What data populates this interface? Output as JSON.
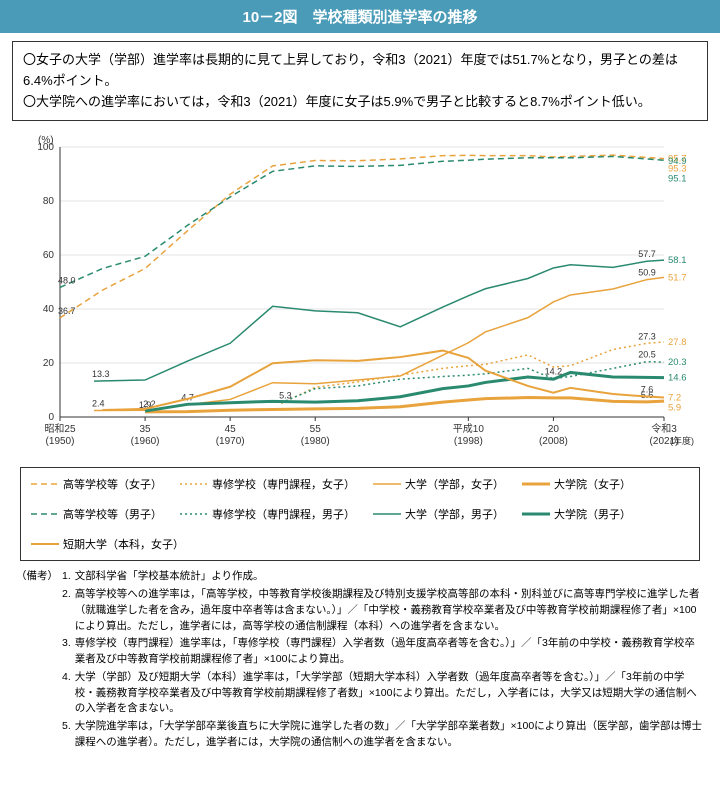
{
  "title": "10－2図　学校種類別進学率の推移",
  "summary": [
    "〇女子の大学（学部）進学率は長期的に見て上昇しており，令和3（2021）年度では51.7%となり，男子との差は6.4%ポイント。",
    "〇大学院への進学率においては，令和3（2021）年度に女子は5.9%で男子と比較すると8.7%ポイント低い。"
  ],
  "chart": {
    "type": "line",
    "ylabel": "(%)",
    "xlabel": "(年度)",
    "ylim": [
      0,
      100
    ],
    "ytick_step": 20,
    "yticks": [
      0,
      20,
      40,
      60,
      80,
      100
    ],
    "xticks": [
      {
        "x": 1950,
        "top": "昭和25",
        "bot": "(1950)"
      },
      {
        "x": 1960,
        "top": "35",
        "bot": "(1960)"
      },
      {
        "x": 1970,
        "top": "45",
        "bot": "(1970)"
      },
      {
        "x": 1980,
        "top": "55",
        "bot": "(1980)"
      },
      {
        "x": 1998,
        "top": "平成10",
        "bot": "(1998)"
      },
      {
        "x": 2008,
        "top": "20",
        "bot": "(2008)"
      },
      {
        "x": 2021,
        "top": "令和3",
        "bot": "(2021)"
      }
    ],
    "xlim": [
      1950,
      2021
    ],
    "background_color": "#ffffff",
    "grid_color": "#c8c8c8",
    "axis_color": "#333333",
    "label_fontsize": 10,
    "series": [
      {
        "id": "hs_f",
        "name": "高等学校等（女子）",
        "color": "#e8a33d",
        "dash": "6,4",
        "width": 1.5,
        "data": [
          [
            1950,
            36.7
          ],
          [
            1955,
            47
          ],
          [
            1960,
            55
          ],
          [
            1965,
            69
          ],
          [
            1970,
            82.5
          ],
          [
            1975,
            93
          ],
          [
            1980,
            95
          ],
          [
            1985,
            94.9
          ],
          [
            1990,
            95.6
          ],
          [
            1995,
            96.8
          ],
          [
            1998,
            96.9
          ],
          [
            2000,
            96.8
          ],
          [
            2005,
            96.8
          ],
          [
            2008,
            96.3
          ],
          [
            2010,
            96.5
          ],
          [
            2015,
            97
          ],
          [
            2021,
            95.7
          ]
        ],
        "start_label": "36.7",
        "end_label": "95.7"
      },
      {
        "id": "hs_m",
        "name": "高等学校等（男子）",
        "color": "#2a8a6f",
        "dash": "6,4",
        "width": 1.5,
        "data": [
          [
            1950,
            48.0
          ],
          [
            1955,
            55
          ],
          [
            1960,
            59.5
          ],
          [
            1965,
            71
          ],
          [
            1970,
            81.5
          ],
          [
            1975,
            91
          ],
          [
            1980,
            93
          ],
          [
            1985,
            92.8
          ],
          [
            1990,
            93.2
          ],
          [
            1995,
            94.7
          ],
          [
            1998,
            95.1
          ],
          [
            2000,
            95.5
          ],
          [
            2005,
            96
          ],
          [
            2008,
            96
          ],
          [
            2010,
            96
          ],
          [
            2015,
            96.5
          ],
          [
            2021,
            95.1
          ]
        ],
        "start_label": "48.0",
        "end_label": "95.1"
      },
      {
        "id": "ss_f",
        "name": "専修学校（専門課程，女子）",
        "color": "#e8a33d",
        "dash": "2,3",
        "width": 1.5,
        "data": [
          [
            1976,
            5
          ],
          [
            1980,
            11
          ],
          [
            1985,
            13
          ],
          [
            1990,
            15.5
          ],
          [
            1995,
            18
          ],
          [
            1998,
            19
          ],
          [
            2000,
            19.5
          ],
          [
            2005,
            23
          ],
          [
            2008,
            18.5
          ],
          [
            2010,
            19
          ],
          [
            2015,
            25
          ],
          [
            2019,
            27.3
          ],
          [
            2021,
            27.8
          ]
        ],
        "end_label": "27.8",
        "mid_label": {
          "x": 2019,
          "y": 27.3,
          "t": "27.3"
        }
      },
      {
        "id": "ss_m",
        "name": "専修学校（専門課程，男子）",
        "color": "#2a8a6f",
        "dash": "2,3",
        "width": 1.5,
        "data": [
          [
            1976,
            5.3
          ],
          [
            1980,
            10.5
          ],
          [
            1985,
            11.5
          ],
          [
            1990,
            14
          ],
          [
            1995,
            15
          ],
          [
            1998,
            15.5
          ],
          [
            2000,
            16
          ],
          [
            2005,
            18
          ],
          [
            2008,
            14.2
          ],
          [
            2010,
            15
          ],
          [
            2015,
            18
          ],
          [
            2019,
            20.5
          ],
          [
            2021,
            20.3
          ]
        ],
        "start_label": "5.3",
        "end_label": "20.3",
        "mid_label": {
          "x": 2019,
          "y": 20.5,
          "t": "20.5"
        },
        "mid_label2": {
          "x": 2008,
          "y": 14.2,
          "t": "14.2"
        }
      },
      {
        "id": "uni_f",
        "name": "大学（学部，女子）",
        "color": "#e8a33d",
        "dash": "",
        "width": 1.5,
        "data": [
          [
            1954,
            2.4
          ],
          [
            1960,
            2.5
          ],
          [
            1965,
            4.6
          ],
          [
            1970,
            6.5
          ],
          [
            1975,
            12.7
          ],
          [
            1980,
            12.3
          ],
          [
            1985,
            13.7
          ],
          [
            1990,
            15.2
          ],
          [
            1995,
            22.9
          ],
          [
            1998,
            27.5
          ],
          [
            2000,
            31.5
          ],
          [
            2005,
            36.8
          ],
          [
            2008,
            42.6
          ],
          [
            2010,
            45.2
          ],
          [
            2015,
            47.4
          ],
          [
            2019,
            50.9
          ],
          [
            2021,
            51.7
          ]
        ],
        "start_label": "2.4",
        "end_label": "51.7",
        "mid_label": {
          "x": 2019,
          "y": 50.9,
          "t": "50.9"
        }
      },
      {
        "id": "uni_m",
        "name": "大学（学部，男子）",
        "color": "#2a8a6f",
        "dash": "",
        "width": 1.5,
        "data": [
          [
            1954,
            13.3
          ],
          [
            1960,
            13.7
          ],
          [
            1965,
            20.7
          ],
          [
            1970,
            27.3
          ],
          [
            1975,
            41
          ],
          [
            1980,
            39.3
          ],
          [
            1985,
            38.6
          ],
          [
            1990,
            33.4
          ],
          [
            1995,
            40.7
          ],
          [
            1998,
            44.9
          ],
          [
            2000,
            47.5
          ],
          [
            2005,
            51.3
          ],
          [
            2008,
            55.2
          ],
          [
            2010,
            56.4
          ],
          [
            2015,
            55.4
          ],
          [
            2019,
            57.7
          ],
          [
            2021,
            58.1
          ]
        ],
        "start_label": "13.3",
        "end_label": "58.1",
        "mid_label": {
          "x": 2019,
          "y": 57.7,
          "t": "57.7"
        }
      },
      {
        "id": "grad_f",
        "name": "大学院（女子）",
        "color": "#e8a33d",
        "dash": "",
        "width": 3,
        "data": [
          [
            1960,
            1.9
          ],
          [
            1965,
            2
          ],
          [
            1970,
            2.5
          ],
          [
            1975,
            2.8
          ],
          [
            1980,
            3
          ],
          [
            1985,
            3.2
          ],
          [
            1990,
            3.8
          ],
          [
            1995,
            5.5
          ],
          [
            1998,
            6.3
          ],
          [
            2000,
            6.8
          ],
          [
            2005,
            7.2
          ],
          [
            2008,
            7.1
          ],
          [
            2010,
            7.1
          ],
          [
            2015,
            5.8
          ],
          [
            2019,
            5.6
          ],
          [
            2021,
            5.9
          ]
        ],
        "end_label": "5.9",
        "mid_label": {
          "x": 1960,
          "y": 1.9,
          "t": "1.9"
        },
        "mid_label2": {
          "x": 2019,
          "y": 5.6,
          "t": "5.6"
        }
      },
      {
        "id": "grad_m",
        "name": "大学院（男子）",
        "color": "#2a8a6f",
        "dash": "",
        "width": 3,
        "data": [
          [
            1960,
            2.2
          ],
          [
            1965,
            4.7
          ],
          [
            1970,
            5.3
          ],
          [
            1975,
            5.8
          ],
          [
            1980,
            5.5
          ],
          [
            1985,
            6
          ],
          [
            1990,
            7.5
          ],
          [
            1995,
            10.5
          ],
          [
            1998,
            11.5
          ],
          [
            2000,
            12.8
          ],
          [
            2005,
            14.8
          ],
          [
            2008,
            14
          ],
          [
            2010,
            16.5
          ],
          [
            2015,
            14.8
          ],
          [
            2021,
            14.6
          ]
        ],
        "end_label": "14.6",
        "mid_label": {
          "x": 1965,
          "y": 4.7,
          "t": "4.7"
        },
        "start_label": "2.2"
      },
      {
        "id": "jc_f",
        "name": "短期大学（本科，女子）",
        "color": "#e8a33d",
        "dash": "",
        "width": 2,
        "data": [
          [
            1955,
            2.6
          ],
          [
            1960,
            3
          ],
          [
            1965,
            6.7
          ],
          [
            1970,
            11.2
          ],
          [
            1975,
            19.9
          ],
          [
            1980,
            21
          ],
          [
            1985,
            20.8
          ],
          [
            1990,
            22.2
          ],
          [
            1995,
            24.6
          ],
          [
            1998,
            21.9
          ],
          [
            2000,
            17.2
          ],
          [
            2005,
            11.5
          ],
          [
            2008,
            9
          ],
          [
            2010,
            10.8
          ],
          [
            2015,
            8.5
          ],
          [
            2019,
            7.6
          ],
          [
            2021,
            7.2
          ]
        ],
        "end_label": "7.2",
        "mid_label": {
          "x": 2019,
          "y": 7.6,
          "t": "7.6"
        }
      }
    ],
    "right_labels": [
      {
        "y": 95.7,
        "t": "95.7",
        "color": "#e8a33d"
      },
      {
        "y": 95.1,
        "t": "95.1",
        "color": "#2a8a6f"
      },
      {
        "y": 94.9,
        "t": "94.9",
        "color": "#2a8a6f"
      },
      {
        "y": 95.3,
        "t": "95.3",
        "color": "#e8a33d"
      },
      {
        "y": 58.1,
        "t": "58.1",
        "color": "#2a8a6f"
      },
      {
        "y": 51.7,
        "t": "51.7",
        "color": "#e8a33d"
      },
      {
        "y": 27.8,
        "t": "27.8",
        "color": "#e8a33d"
      },
      {
        "y": 20.3,
        "t": "20.3",
        "color": "#2a8a6f"
      },
      {
        "y": 14.6,
        "t": "14.6",
        "color": "#2a8a6f"
      },
      {
        "y": 7.2,
        "t": "7.2",
        "color": "#e8a33d"
      },
      {
        "y": 5.9,
        "t": "5.9",
        "color": "#e8a33d"
      }
    ]
  },
  "legend": [
    {
      "id": "hs_f",
      "label": "高等学校等（女子）",
      "color": "#e8a33d",
      "dash": "6,4",
      "width": 1.5
    },
    {
      "id": "ss_f",
      "label": "専修学校（専門課程，女子）",
      "color": "#e8a33d",
      "dash": "2,3",
      "width": 1.5
    },
    {
      "id": "uni_f",
      "label": "大学（学部，女子）",
      "color": "#e8a33d",
      "dash": "",
      "width": 1.5
    },
    {
      "id": "grad_f",
      "label": "大学院（女子）",
      "color": "#e8a33d",
      "dash": "",
      "width": 3
    },
    {
      "id": "hs_m",
      "label": "高等学校等（男子）",
      "color": "#2a8a6f",
      "dash": "6,4",
      "width": 1.5
    },
    {
      "id": "ss_m",
      "label": "専修学校（専門課程，男子）",
      "color": "#2a8a6f",
      "dash": "2,3",
      "width": 1.5
    },
    {
      "id": "uni_m",
      "label": "大学（学部，男子）",
      "color": "#2a8a6f",
      "dash": "",
      "width": 1.5
    },
    {
      "id": "grad_m",
      "label": "大学院（男子）",
      "color": "#2a8a6f",
      "dash": "",
      "width": 3
    },
    {
      "id": "jc_f",
      "label": "短期大学（本科，女子）",
      "color": "#e8a33d",
      "dash": "",
      "width": 2
    }
  ],
  "notes_label": "（備考）",
  "notes": [
    "文部科学省「学校基本統計」より作成。",
    "高等学校等への進学率は，「高等学校，中等教育学校後期課程及び特別支援学校高等部の本科・別科並びに高等専門学校に進学した者（就職進学した者を含み，過年度中卒者等は含まない。）」／「中学校・義務教育学校卒業者及び中等教育学校前期課程修了者」×100により算出。ただし，進学者には，高等学校の通信制課程（本科）への進学者を含まない。",
    "専修学校（専門課程）進学率は，「専修学校（専門課程）入学者数（過年度高卒者等を含む。）」／「3年前の中学校・義務教育学校卒業者及び中等教育学校前期課程修了者」×100により算出。",
    "大学（学部）及び短期大学（本科）進学率は，「大学学部（短期大学本科）入学者数（過年度高卒者等を含む。）」／「3年前の中学校・義務教育学校卒業者及び中等教育学校前期課程修了者数」×100により算出。ただし，入学者には，大学又は短期大学の通信制への入学者を含まない。",
    "大学院進学率は，「大学学部卒業後直ちに大学院に進学した者の数」／「大学学部卒業者数」×100により算出（医学部，歯学部は博士課程への進学者）。ただし，進学者には，大学院の通信制への進学者を含まない。"
  ]
}
